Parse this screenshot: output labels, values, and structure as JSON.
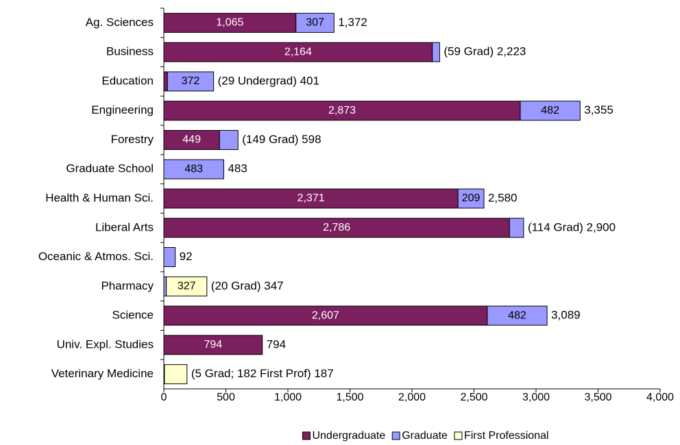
{
  "chart_data": {
    "type": "stacked-bar",
    "orientation": "horizontal",
    "categories": [
      "Ag. Sciences",
      "Business",
      "Education",
      "Engineering",
      "Forestry",
      "Graduate School",
      "Health & Human Sci.",
      "Liberal Arts",
      "Oceanic & Atmos. Sci.",
      "Pharmacy",
      "Science",
      "Univ. Expl. Studies",
      "Veterinary Medicine"
    ],
    "series": [
      {
        "name": "Undergraduate",
        "color": "#7b1f5e",
        "label_color": "#ffffff",
        "values": [
          1065,
          2164,
          29,
          2873,
          449,
          null,
          2371,
          2786,
          null,
          null,
          2607,
          794,
          null
        ],
        "value_labels": [
          "1,065",
          "2,164",
          null,
          "2,873",
          "449",
          null,
          "2,371",
          "2,786",
          null,
          null,
          "2,607",
          "794",
          null
        ]
      },
      {
        "name": "Graduate",
        "color": "#9999ff",
        "label_color": "#000000",
        "values": [
          307,
          59,
          372,
          482,
          149,
          483,
          209,
          114,
          92,
          20,
          482,
          null,
          5
        ],
        "value_labels": [
          "307",
          null,
          "372",
          "482",
          null,
          "483",
          "209",
          null,
          null,
          null,
          "482",
          null,
          null
        ]
      },
      {
        "name": "First Professional",
        "color": "#ffffcc",
        "label_color": "#000000",
        "values": [
          null,
          null,
          null,
          null,
          null,
          null,
          null,
          null,
          null,
          327,
          null,
          null,
          182
        ],
        "value_labels": [
          null,
          null,
          null,
          null,
          null,
          null,
          null,
          null,
          null,
          "327",
          null,
          null,
          null
        ]
      }
    ],
    "annotations": [
      "1,372",
      "(59 Grad) 2,223",
      "(29 Undergrad) 401",
      "3,355",
      "(149 Grad) 598",
      "483",
      "2,580",
      "(114 Grad) 2,900",
      "92",
      "(20 Grad) 347",
      "3,089",
      "794",
      "(5 Grad; 182 First Prof) 187"
    ],
    "xlim": [
      0,
      4000
    ],
    "xticks": [
      0,
      500,
      {
        "value": 1000,
        "label": "1,000"
      },
      {
        "value": 1500,
        "label": "1,500"
      },
      {
        "value": 2000,
        "label": "2,000"
      },
      {
        "value": 2500,
        "label": "2,500"
      },
      {
        "value": 3000,
        "label": "3,000"
      },
      {
        "value": 3500,
        "label": "3,500"
      },
      {
        "value": 4000,
        "label": "4,000"
      }
    ],
    "legend": "bottom"
  }
}
